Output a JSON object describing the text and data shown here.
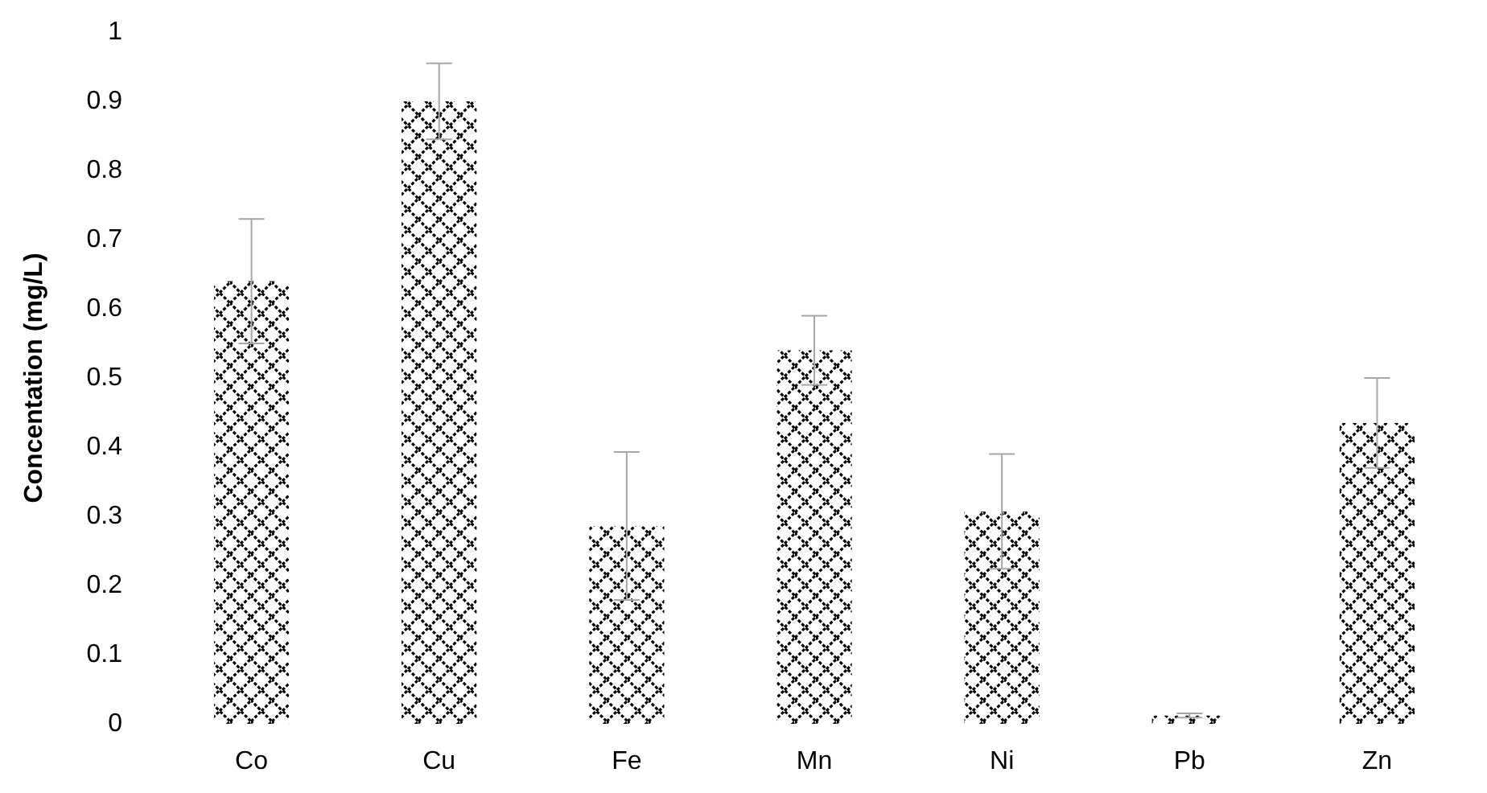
{
  "chart_data": {
    "type": "bar",
    "ylabel": "Concentation (mg/L)",
    "categories": [
      "Co",
      "Cu",
      "Fe",
      "Mn",
      "Ni",
      "Pb",
      "Zn"
    ],
    "values": [
      0.64,
      0.9,
      0.286,
      0.54,
      0.307,
      0.012,
      0.435
    ],
    "errors": [
      0.09,
      0.055,
      0.107,
      0.05,
      0.083,
      0.003,
      0.065
    ],
    "color": "#000000",
    "ylim": [
      0,
      1
    ],
    "yticks": [
      0,
      {
        "value": 0.1,
        "label": "0.1"
      },
      {
        "value": 0.2,
        "label": "0.2"
      },
      {
        "value": 0.3,
        "label": "0.3"
      },
      {
        "value": 0.4,
        "label": "0.4"
      },
      {
        "value": 0.5,
        "label": "0.5"
      },
      {
        "value": 0.6,
        "label": "0.6"
      },
      {
        "value": 0.7,
        "label": "0.7"
      },
      {
        "value": 0.8,
        "label": "0.8"
      },
      {
        "value": 0.9,
        "label": "0.9"
      },
      1
    ],
    "grid": false
  }
}
